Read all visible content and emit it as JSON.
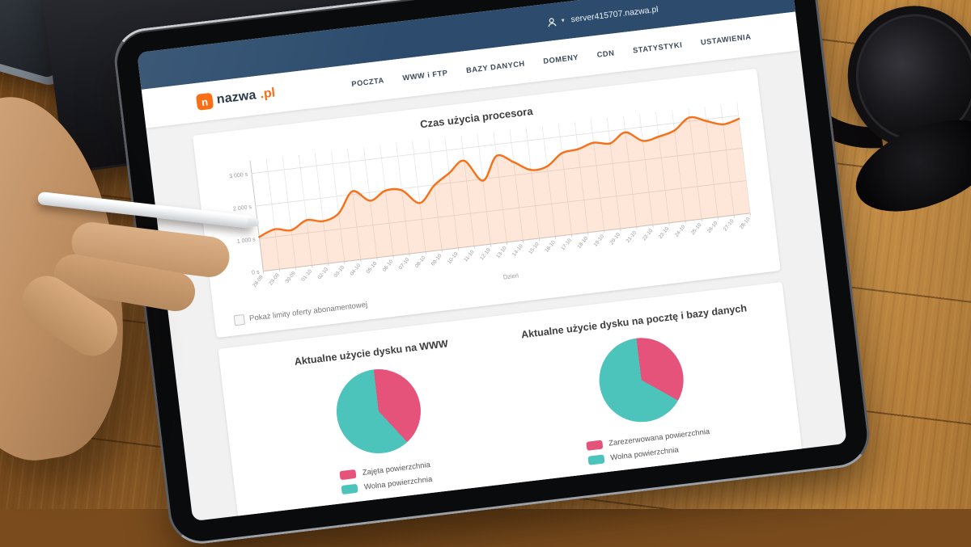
{
  "account": {
    "label": "server415707.nazwa.pl"
  },
  "logo": {
    "mark": "n",
    "name": "nazwa",
    "tld": ".pl"
  },
  "nav": {
    "items": [
      "POCZTA",
      "WWW i FTP",
      "BAZY DANYCH",
      "DOMENY",
      "CDN",
      "STATYSTYKI",
      "USTAWIENIA"
    ]
  },
  "cpu_section": {
    "checkbox_label": "Pokaż limity oferty abonamentowej",
    "checkbox_checked": false
  },
  "chart_data": [
    {
      "type": "area",
      "title": "Czas użycia procesora",
      "xlabel": "Dzień",
      "ylabel": "",
      "x": [
        "28-09",
        "29-09",
        "30-09",
        "01-10",
        "02-10",
        "03-10",
        "04-10",
        "05-10",
        "06-10",
        "07-10",
        "08-10",
        "09-10",
        "10-10",
        "11-10",
        "12-10",
        "13-10",
        "14-10",
        "15-10",
        "16-10",
        "17-10",
        "18-10",
        "19-10",
        "20-10",
        "21-10",
        "22-10",
        "23-10",
        "24-10",
        "25-10",
        "26-10",
        "27-10",
        "28-10"
      ],
      "values": [
        1050,
        1230,
        1140,
        1390,
        1300,
        1480,
        2100,
        1750,
        2000,
        1950,
        1500,
        1980,
        2300,
        2620,
        1950,
        2650,
        2400,
        2100,
        2150,
        2500,
        2560,
        2700,
        2620,
        2900,
        2580,
        2650,
        2780,
        3120,
        2950,
        2790,
        2900
      ],
      "ylim": [
        0,
        3400
      ],
      "ytick_values": [
        0,
        1000,
        2000,
        3000
      ],
      "ytick_labels": [
        "0 s",
        "1 000 s",
        "2 000 s",
        "3 000 s"
      ],
      "grid": true,
      "line_color": "#f86f17",
      "fill_color": "rgba(248,111,23,0.17)"
    },
    {
      "type": "pie",
      "title": "Aktualne użycie dysku na WWW",
      "slices": [
        {
          "label": "Zajęta powierzchnia",
          "value": 40,
          "color": "#e5537b"
        },
        {
          "label": "Wolna powierzchnia",
          "value": 60,
          "color": "#4cc3bb"
        }
      ],
      "legend_position": "bottom"
    },
    {
      "type": "pie",
      "title": "Aktualne użycie dysku na pocztę i bazy danych",
      "slices": [
        {
          "label": "Zarezerwowana powierzchnia",
          "value": 35,
          "color": "#e5537b"
        },
        {
          "label": "Wolna powierzchnia",
          "value": 65,
          "color": "#4cc3bb"
        }
      ],
      "legend_position": "bottom"
    }
  ],
  "colors": {
    "header_navy": "#2d4c6d",
    "accent_orange": "#f86f17",
    "pie_pink": "#e5537b",
    "pie_teal": "#4cc3bb"
  }
}
